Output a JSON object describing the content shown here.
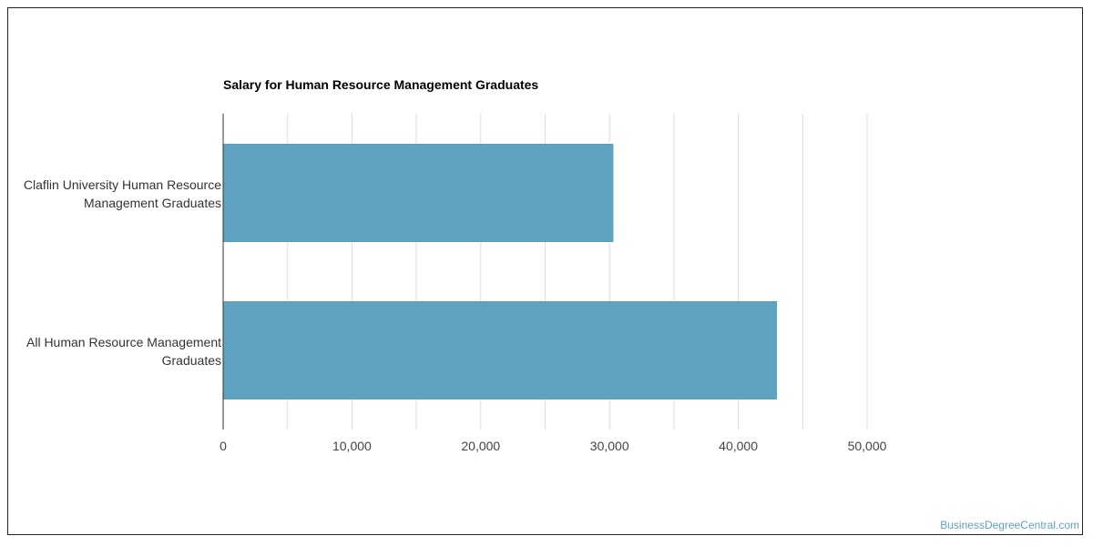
{
  "chart_data": {
    "type": "bar",
    "orientation": "horizontal",
    "title": "Salary for Human Resource Management Graduates",
    "categories": [
      "Claflin University Human Resource Management Graduates",
      "All Human Resource Management Graduates"
    ],
    "category_lines": [
      [
        "Claflin University Human Resource",
        "Management Graduates"
      ],
      [
        "All Human Resource Management",
        "Graduates"
      ]
    ],
    "values": [
      30300,
      43000
    ],
    "xlim": [
      0,
      55000
    ],
    "x_ticks": [
      0,
      10000,
      20000,
      30000,
      40000,
      50000
    ],
    "x_tick_labels": [
      "0",
      "10,000",
      "20,000",
      "30,000",
      "40,000",
      "50,000"
    ],
    "xlabel": "",
    "ylabel": "",
    "grid": "vertical",
    "bar_color": "#5fa2bf",
    "legend": "none"
  },
  "watermark": "BusinessDegreeCentral.com"
}
